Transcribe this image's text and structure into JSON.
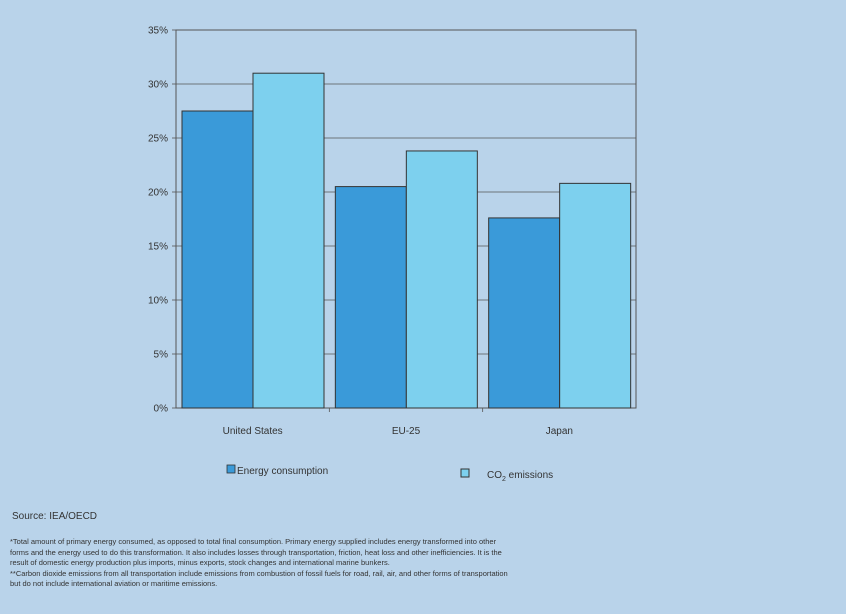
{
  "chart_data": {
    "type": "bar",
    "categories": [
      "United States",
      "EU-25",
      "Japan"
    ],
    "series": [
      {
        "name": "Energy consumption",
        "values": [
          27.5,
          20.5,
          17.6
        ]
      },
      {
        "name": "CO2 emissions",
        "values": [
          31.0,
          23.8,
          20.8
        ]
      }
    ],
    "ylim": [
      0,
      35
    ],
    "yticks": [
      0,
      5,
      10,
      15,
      20,
      25,
      30,
      35
    ],
    "ytick_labels": [
      "0%",
      "5%",
      "10%",
      "15%",
      "20%",
      "25%",
      "30%",
      "35%"
    ],
    "colors": [
      "#3a9ad9",
      "#7dd0ee"
    ],
    "grid": true,
    "legend_position": "bottom"
  },
  "legend": {
    "energy_label": "Energy consumption",
    "co2_prefix": "CO",
    "co2_sub": "2",
    "co2_suffix": " emissions"
  },
  "source": "Source: IEA/OECD",
  "notes": [
    "*Total amount of primary energy consumed, as opposed to total final consumption. Primary energy supplied includes energy transformed into other",
    "forms and the energy used to do this transformation. It also includes losses through transportation, friction, heat loss and other inefficiencies. It is the",
    "result of domestic energy production plus imports, minus exports, stock changes and international marine bunkers.",
    "**Carbon dioxide emissions from all transportation include emissions from combustion of fossil fuels for road, rail, air, and other forms of transportation",
    "but do not include international aviation or maritime emissions."
  ]
}
